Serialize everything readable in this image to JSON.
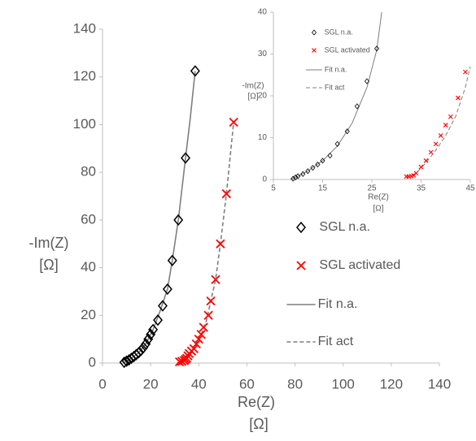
{
  "chart_data": [
    {
      "type": "scatter",
      "x_label": [
        "Re(Z)",
        "[Ω]"
      ],
      "y_label": [
        "-Im(Z)",
        "[Ω]"
      ],
      "xlim": [
        0,
        140
      ],
      "xticks": [
        0,
        20,
        40,
        60,
        80,
        100,
        120,
        140
      ],
      "ylim": [
        0,
        140
      ],
      "yticks": [
        0,
        20,
        40,
        60,
        80,
        100,
        120,
        140
      ],
      "legend": "right",
      "series": [
        {
          "name": "SGL n.a.",
          "color": "#000000",
          "mode": "markers",
          "marker": "diamond",
          "x": [
            9,
            10,
            11,
            12,
            13,
            14,
            15,
            16,
            17,
            18,
            19,
            20,
            21,
            23,
            25,
            27,
            29,
            31.5,
            34.5,
            38.5
          ],
          "values": [
            0.3,
            0.8,
            1.3,
            2,
            2.7,
            3.5,
            4.3,
            5.3,
            6.5,
            8,
            10,
            12,
            14,
            18,
            24,
            31,
            43,
            60,
            86,
            122.5
          ]
        },
        {
          "name": "SGL activated",
          "color": "#ff0000",
          "mode": "markers",
          "marker": "x",
          "x": [
            32,
            33,
            34,
            34.5,
            35,
            35.5,
            36,
            37,
            38,
            39,
            40,
            41,
            42,
            44,
            45,
            47,
            49,
            51.5,
            54.5
          ],
          "values": [
            0.5,
            0.7,
            1,
            1.5,
            2,
            3,
            4,
            5,
            6,
            8,
            10,
            12,
            15,
            20,
            26,
            35,
            50,
            71,
            101
          ]
        },
        {
          "name": "Fit n.a.",
          "color": "#7f7f7f",
          "mode": "line",
          "dash": "solid",
          "x": [
            8.5,
            10,
            12,
            15,
            18,
            21,
            24,
            27,
            29,
            31.5,
            34.5,
            36.5,
            38.5
          ],
          "values": [
            0,
            0.8,
            2,
            4.3,
            8,
            14,
            22,
            31,
            43,
            60,
            86,
            103,
            122.5
          ]
        },
        {
          "name": "Fit act",
          "color": "#7f7f7f",
          "mode": "line",
          "dash": "dashed",
          "x": [
            31,
            33,
            35,
            37,
            39,
            41,
            43,
            45,
            47,
            49,
            51.5,
            54.5
          ],
          "values": [
            0,
            0.6,
            2,
            5,
            8,
            12,
            17,
            26,
            35,
            50,
            71,
            101
          ]
        }
      ]
    },
    {
      "type": "scatter",
      "x_label": [
        "Re(Z)",
        "[Ω]"
      ],
      "y_label": [
        "-Im(Z)",
        "[Ω]"
      ],
      "xlim": [
        5,
        45
      ],
      "xticks": [
        5,
        15,
        25,
        35,
        45
      ],
      "ylim": [
        0,
        40
      ],
      "yticks": [
        0,
        10,
        20,
        30,
        40
      ],
      "legend": "upper left",
      "series": [
        {
          "name": "SGL n.a.",
          "color": "#000000",
          "mode": "markers",
          "marker": "diamond",
          "x": [
            9,
            9.5,
            10,
            11,
            12,
            13,
            14,
            15,
            16.5,
            18,
            20,
            22,
            24,
            26
          ],
          "values": [
            0.2,
            0.5,
            0.8,
            1.3,
            2,
            2.8,
            3.6,
            4.5,
            5.7,
            8.5,
            11.5,
            17.5,
            23.5,
            31.3
          ]
        },
        {
          "name": "SGL activated",
          "color": "#ff0000",
          "mode": "markers",
          "marker": "x",
          "x": [
            32,
            32.5,
            33,
            33.5,
            34,
            35,
            36,
            37,
            38,
            39,
            40,
            41,
            42.5,
            44
          ],
          "values": [
            0.7,
            0.7,
            0.8,
            1,
            1.5,
            3,
            4.5,
            6.5,
            8.5,
            10.5,
            13,
            15,
            19.5,
            25.7
          ]
        },
        {
          "name": "Fit n.a.",
          "color": "#7f7f7f",
          "mode": "line",
          "dash": "solid",
          "x": [
            8.5,
            10,
            12,
            15,
            18,
            21,
            24,
            26,
            27
          ],
          "values": [
            0,
            0.8,
            2,
            4.5,
            8,
            13.5,
            22,
            31,
            40
          ]
        },
        {
          "name": "Fit act",
          "color": "#7f7f7f",
          "mode": "line",
          "dash": "dashed",
          "x": [
            32,
            34,
            36,
            38,
            40,
            42,
            44,
            45
          ],
          "values": [
            0.5,
            1.5,
            4,
            7,
            10.5,
            15,
            22,
            27
          ]
        }
      ]
    }
  ]
}
